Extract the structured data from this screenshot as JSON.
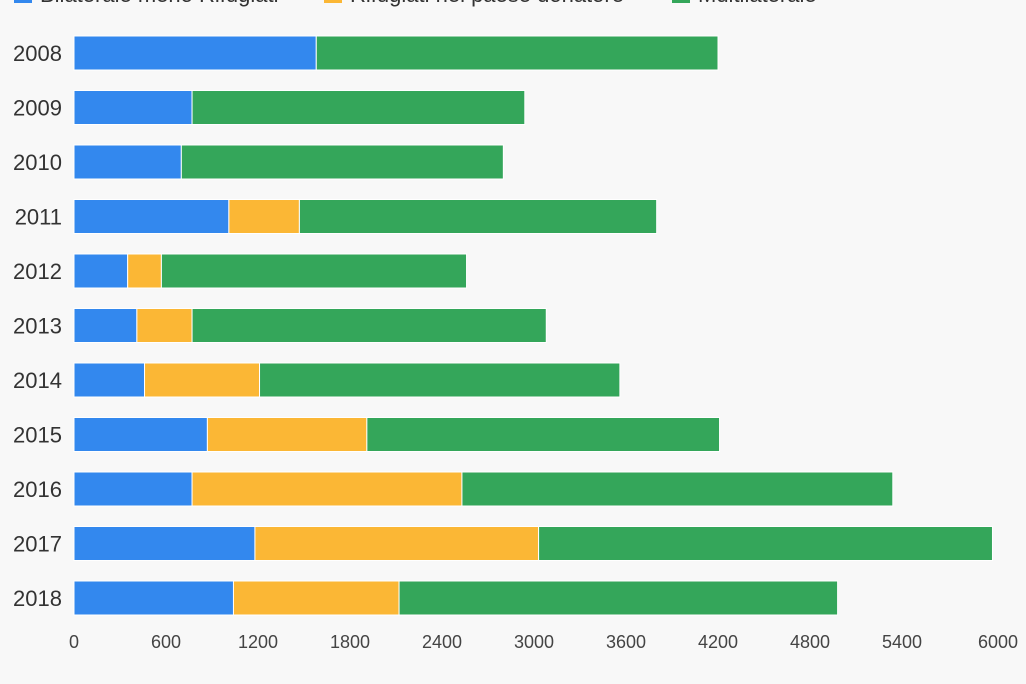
{
  "chart_data": {
    "type": "bar",
    "orientation": "horizontal",
    "stacked": true,
    "title": "",
    "xlabel": "",
    "ylabel": "",
    "categories": [
      "2008",
      "2009",
      "2010",
      "2011",
      "2012",
      "2013",
      "2014",
      "2015",
      "2016",
      "2017",
      "2018"
    ],
    "series": [
      {
        "name": "Bilaterale meno Rifugiati",
        "color": "#3388ee",
        "values": [
          1580,
          770,
          700,
          1010,
          350,
          410,
          460,
          870,
          770,
          1180,
          1040
        ]
      },
      {
        "name": "Rifugiati nel paese donatore",
        "color": "#fbb735",
        "values": [
          0,
          0,
          0,
          460,
          220,
          360,
          750,
          1040,
          1760,
          1850,
          1080
        ]
      },
      {
        "name": "Multilaterale",
        "color": "#34a65a",
        "values": [
          2620,
          2170,
          2100,
          2330,
          1990,
          2310,
          2350,
          2300,
          2810,
          2960,
          2860
        ]
      }
    ],
    "xticks": [
      "0",
      "600",
      "1200",
      "1800",
      "2400",
      "3000",
      "3600",
      "4200",
      "4800",
      "5400",
      "6000"
    ],
    "xlim": [
      0,
      6000
    ],
    "grid": false,
    "legend_position": "top-left"
  }
}
